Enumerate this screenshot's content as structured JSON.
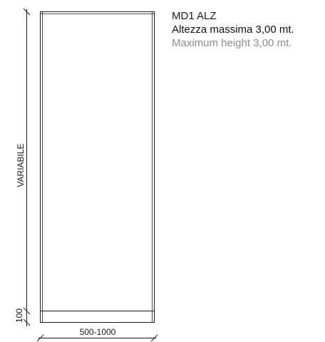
{
  "product": {
    "code": "MD1 ALZ",
    "max_height_it": "Altezza massima 3,00 mt.",
    "max_height_en": "Maximum height 3,00 mt."
  },
  "dimensions": {
    "height_label": "VARIABILE",
    "base_label": "100",
    "width_label": "500-1000"
  },
  "colors": {
    "line": "#1a1a1a",
    "secondary_text": "#8c8c8c"
  }
}
